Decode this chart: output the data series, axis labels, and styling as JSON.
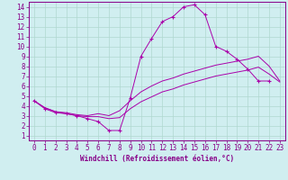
{
  "xlabel": "Windchill (Refroidissement éolien,°C)",
  "xlim": [
    -0.5,
    23.5
  ],
  "ylim": [
    0.5,
    14.5
  ],
  "xticks": [
    0,
    1,
    2,
    3,
    4,
    5,
    6,
    7,
    8,
    9,
    10,
    11,
    12,
    13,
    14,
    15,
    16,
    17,
    18,
    19,
    20,
    21,
    22,
    23
  ],
  "yticks": [
    1,
    2,
    3,
    4,
    5,
    6,
    7,
    8,
    9,
    10,
    11,
    12,
    13,
    14
  ],
  "bg_color": "#d0eef0",
  "line_color": "#aa00aa",
  "grid_color": "#b0d8d0",
  "lines": [
    {
      "x": [
        0,
        1,
        2,
        3,
        4,
        5,
        6,
        7,
        8,
        9,
        10,
        11,
        12,
        13,
        14,
        15,
        16,
        17,
        18,
        19,
        20,
        21,
        22
      ],
      "y": [
        4.5,
        3.7,
        3.3,
        3.2,
        3.0,
        2.7,
        2.4,
        1.5,
        1.5,
        4.8,
        9.0,
        10.8,
        12.5,
        13.0,
        14.0,
        14.2,
        13.2,
        10.0,
        9.5,
        8.7,
        7.7,
        6.5,
        6.5
      ],
      "marker": "+"
    },
    {
      "x": [
        0,
        1,
        2,
        3,
        4,
        5,
        6,
        7,
        8,
        9,
        10,
        11,
        12,
        13,
        14,
        15,
        16,
        17,
        18,
        19,
        20,
        21,
        22,
        23
      ],
      "y": [
        4.5,
        3.8,
        3.4,
        3.3,
        3.1,
        3.0,
        3.2,
        3.0,
        3.5,
        4.5,
        5.4,
        6.0,
        6.5,
        6.8,
        7.2,
        7.5,
        7.8,
        8.1,
        8.3,
        8.5,
        8.7,
        9.0,
        8.0,
        6.5
      ],
      "marker": null
    },
    {
      "x": [
        0,
        1,
        2,
        3,
        4,
        5,
        6,
        7,
        8,
        9,
        10,
        11,
        12,
        13,
        14,
        15,
        16,
        17,
        18,
        19,
        20,
        21,
        22,
        23
      ],
      "y": [
        4.5,
        3.8,
        3.4,
        3.2,
        3.0,
        2.9,
        2.9,
        2.7,
        2.8,
        3.7,
        4.4,
        4.9,
        5.4,
        5.7,
        6.1,
        6.4,
        6.7,
        7.0,
        7.2,
        7.4,
        7.6,
        7.9,
        7.2,
        6.4
      ],
      "marker": null
    }
  ],
  "font_color": "#880088",
  "spine_color": "#880088",
  "tick_labelsize": 5.5,
  "xlabel_fontsize": 5.5
}
